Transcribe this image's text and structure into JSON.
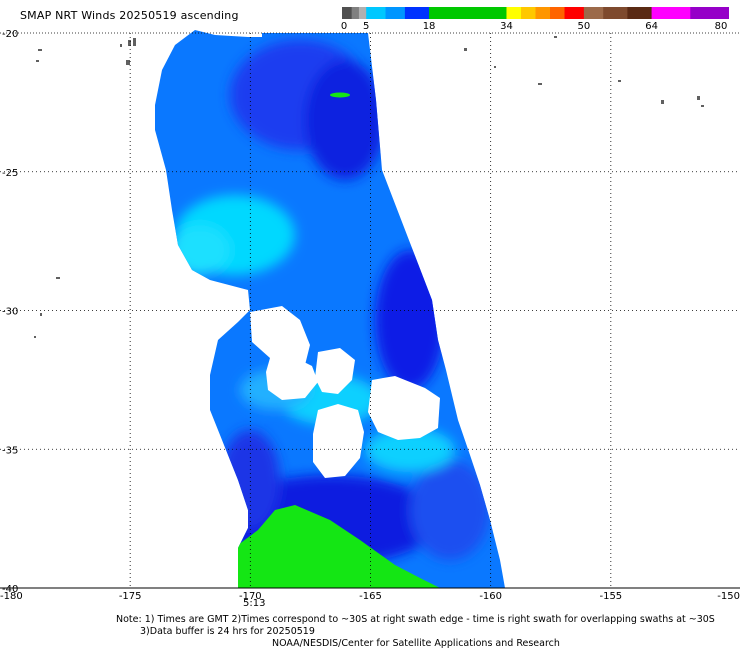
{
  "header": {
    "title": "SMAP NRT Winds 20250519 ascending"
  },
  "legend": {
    "labels": [
      "0",
      "5",
      "18",
      "34",
      "50",
      "64",
      "80"
    ],
    "label_values": [
      0,
      5,
      18,
      34,
      50,
      64,
      80
    ],
    "segments": [
      {
        "from": 0,
        "to": 2,
        "color": "#505050"
      },
      {
        "from": 2,
        "to": 3.5,
        "color": "#808080"
      },
      {
        "from": 3.5,
        "to": 5,
        "color": "#b0b0b0"
      },
      {
        "from": 5,
        "to": 9,
        "color": "#00c8ff"
      },
      {
        "from": 9,
        "to": 13,
        "color": "#0096ff"
      },
      {
        "from": 13,
        "to": 18,
        "color": "#0032ff"
      },
      {
        "from": 18,
        "to": 34,
        "color": "#00c800"
      },
      {
        "from": 34,
        "to": 37,
        "color": "#ffff00"
      },
      {
        "from": 37,
        "to": 40,
        "color": "#ffc800"
      },
      {
        "from": 40,
        "to": 43,
        "color": "#ff9600"
      },
      {
        "from": 43,
        "to": 46,
        "color": "#ff6400"
      },
      {
        "from": 46,
        "to": 50,
        "color": "#ff0000"
      },
      {
        "from": 50,
        "to": 54,
        "color": "#9c6a4a"
      },
      {
        "from": 54,
        "to": 59,
        "color": "#7e4a2e"
      },
      {
        "from": 59,
        "to": 64,
        "color": "#5a2a14"
      },
      {
        "from": 64,
        "to": 72,
        "color": "#ff00ff"
      },
      {
        "from": 72,
        "to": 80,
        "color": "#9600c8"
      }
    ]
  },
  "map": {
    "lat_ticks": [
      "-20",
      "-25",
      "-30",
      "-35",
      "-40"
    ],
    "lat_values": [
      -20,
      -25,
      -30,
      -35,
      -40
    ],
    "lon_ticks": [
      "-180",
      "-175",
      "-170",
      "-165",
      "-160",
      "-155",
      "-150"
    ],
    "lon_values": [
      -180,
      -175,
      -170,
      -165,
      -160,
      -155,
      -150
    ],
    "lat_range": [
      -40,
      -20
    ],
    "lon_range": [
      -180,
      -150
    ],
    "grid": "dotted",
    "colors": {
      "weak_wind": "#00d8ff",
      "moderate_wind": "#0a78ff",
      "strong_wind": "#0a1ee6",
      "gale_wind": "#14e614",
      "land": "#606060"
    }
  },
  "swath_time": "5:13",
  "notes": {
    "line1": "Note: 1) Times are GMT 2)Times correspond to ~30S at right swath edge - time is right swath for overlapping swaths at ~30S",
    "line2": "3)Data buffer is 24 hrs for 20250519",
    "line3": "NOAA/NESDIS/Center for Satellite Applications and Research"
  }
}
